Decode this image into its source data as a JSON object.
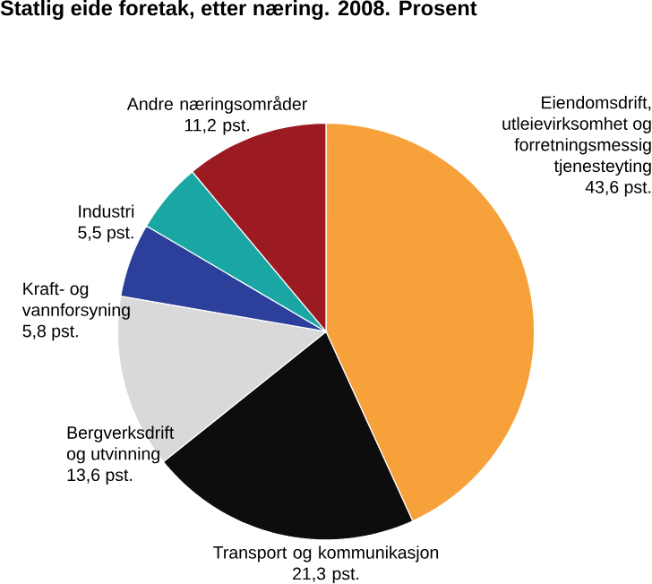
{
  "chart_data": {
    "type": "pie",
    "title": "Statlig eide foretak, etter næring. 2008. Prosent",
    "categories": [
      "Eiendomsdrift, utleievirksomhet og forretningsmessig tjenesteyting",
      "Transport og kommunikasjon",
      "Bergverksdrift og utvinning",
      "Kraft- og vannforsyning",
      "Industri",
      "Andre næringsområder"
    ],
    "values": [
      43.6,
      21.3,
      13.6,
      5.8,
      5.5,
      11.2
    ],
    "colors": [
      "#f7a13b",
      "#0d0d0d",
      "#d9d9d9",
      "#2c3f9b",
      "#1aa7a4",
      "#9c1b22"
    ],
    "value_labels": [
      "43,6 pst.",
      "21,3 pst.",
      "13,6 pst.",
      "5,8 pst.",
      "5,5 pst.",
      "11,2 pst."
    ]
  }
}
